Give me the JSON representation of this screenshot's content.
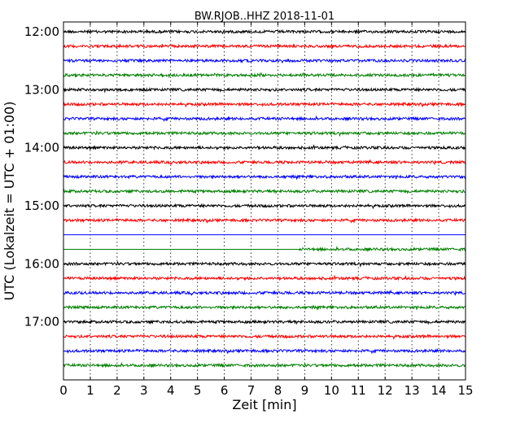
{
  "chart_data": {
    "type": "line",
    "title": "BW.RJOB..HHZ 2018-11-01",
    "xlabel": "Zeit  [min]",
    "ylabel": "UTC (Lokalzeit = UTC + 01:00)",
    "xlim": [
      0,
      15
    ],
    "ylim_hours": [
      11.833,
      18.0
    ],
    "x_ticks": [
      "0",
      "1",
      "2",
      "3",
      "4",
      "5",
      "6",
      "7",
      "8",
      "9",
      "10",
      "11",
      "12",
      "13",
      "14",
      "15"
    ],
    "y_ticks": [
      {
        "hour": 12,
        "label": "12:00"
      },
      {
        "hour": 13,
        "label": "13:00"
      },
      {
        "hour": 14,
        "label": "14:00"
      },
      {
        "hour": 15,
        "label": "15:00"
      },
      {
        "hour": 16,
        "label": "16:00"
      },
      {
        "hour": 17,
        "label": "17:00"
      }
    ],
    "grid": "vertical-dotted",
    "trace_interval_minutes": 15,
    "colors": [
      "#000000",
      "#ff0000",
      "#0000ff",
      "#008000"
    ],
    "traces": [
      {
        "start": "12:00",
        "amplitude": 1.0
      },
      {
        "start": "12:15",
        "amplitude": 1.0
      },
      {
        "start": "12:30",
        "amplitude": 1.0
      },
      {
        "start": "12:45",
        "amplitude": 1.0
      },
      {
        "start": "13:00",
        "amplitude": 1.0
      },
      {
        "start": "13:15",
        "amplitude": 1.0
      },
      {
        "start": "13:30",
        "amplitude": 1.0
      },
      {
        "start": "13:45",
        "amplitude": 1.0
      },
      {
        "start": "14:00",
        "amplitude": 1.0
      },
      {
        "start": "14:15",
        "amplitude": 1.0
      },
      {
        "start": "14:30",
        "amplitude": 1.0
      },
      {
        "start": "14:45",
        "amplitude": 1.0
      },
      {
        "start": "15:00",
        "amplitude": 1.0
      },
      {
        "start": "15:15",
        "amplitude": 1.0
      },
      {
        "start": "15:30",
        "amplitude": 0.0
      },
      {
        "start": "15:45",
        "amplitude": 1.0,
        "data_from_min": 8.8
      },
      {
        "start": "16:00",
        "amplitude": 1.0
      },
      {
        "start": "16:15",
        "amplitude": 1.0
      },
      {
        "start": "16:30",
        "amplitude": 1.0
      },
      {
        "start": "16:45",
        "amplitude": 1.0
      },
      {
        "start": "17:00",
        "amplitude": 1.0
      },
      {
        "start": "17:15",
        "amplitude": 1.0
      },
      {
        "start": "17:30",
        "amplitude": 1.0
      },
      {
        "start": "17:45",
        "amplitude": 1.0
      }
    ]
  }
}
